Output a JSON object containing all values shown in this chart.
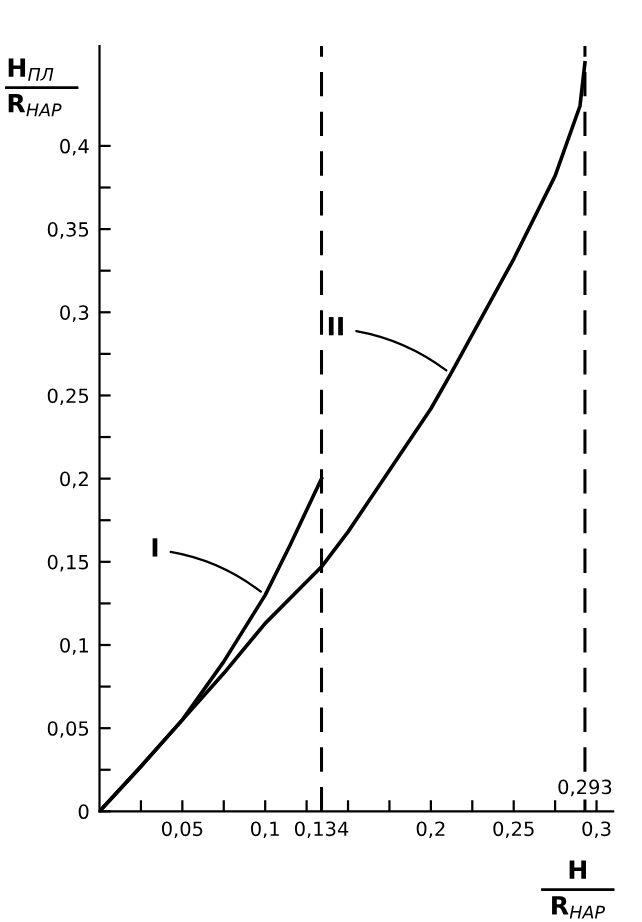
{
  "chart_data": {
    "type": "line",
    "xlabel": "H\nR$_{НАР}$",
    "ylabel": "H$_{ПЛ}$\nR$_{НАР}$",
    "series": [
      {
        "color": "#000000",
        "x": [
          0,
          0.025,
          0.05,
          0.075,
          0.1,
          0.115,
          0.134
        ],
        "values": [
          0,
          0.027,
          0.055,
          0.09,
          0.13,
          0.16,
          0.2
        ]
      },
      {
        "color": "#000000",
        "x": [
          0,
          0.025,
          0.05,
          0.075,
          0.1,
          0.134,
          0.15,
          0.2,
          0.212,
          0.25,
          0.275,
          0.29,
          0.293
        ],
        "values": [
          0,
          0.027,
          0.055,
          0.083,
          0.113,
          0.147,
          0.168,
          0.242,
          0.263,
          0.332,
          0.382,
          0.424,
          0.45
        ]
      }
    ],
    "xlim": [
      0,
      0.31
    ],
    "ylim": [
      0,
      0.46
    ],
    "xticks": [
      {
        "value": 0.025,
        "label": null
      },
      {
        "value": 0.05,
        "label": "0,05"
      },
      {
        "value": 0.075,
        "label": null
      },
      {
        "value": 0.1,
        "label": "0,1"
      },
      {
        "value": 0.125,
        "label": null
      },
      {
        "value": 0.134,
        "label": "0,134"
      },
      {
        "value": 0.15,
        "label": null
      },
      {
        "value": 0.175,
        "label": null
      },
      {
        "value": 0.2,
        "label": "0,2"
      },
      {
        "value": 0.225,
        "label": null
      },
      {
        "value": 0.25,
        "label": "0,25"
      },
      {
        "value": 0.275,
        "label": null
      },
      {
        "value": 0.3,
        "label": "0,3"
      }
    ],
    "yticks": [
      {
        "value": 0,
        "label": "0"
      },
      {
        "value": 0.025,
        "label": null
      },
      {
        "value": 0.05,
        "label": "0,05"
      },
      {
        "value": 0.075,
        "label": null
      },
      {
        "value": 0.1,
        "label": "0,1"
      },
      {
        "value": 0.125,
        "label": null
      },
      {
        "value": 0.15,
        "label": "0,15"
      },
      {
        "value": 0.175,
        "label": null
      },
      {
        "value": 0.2,
        "label": "0,2"
      },
      {
        "value": 0.225,
        "label": null
      },
      {
        "value": 0.25,
        "label": "0,25"
      },
      {
        "value": 0.275,
        "label": null
      },
      {
        "value": 0.3,
        "label": "0,3"
      },
      {
        "value": 0.325,
        "label": null
      },
      {
        "value": 0.35,
        "label": "0,35"
      },
      {
        "value": 0.375,
        "label": null
      },
      {
        "value": 0.4,
        "label": "0,4"
      }
    ],
    "ref_lines": [
      {
        "axis": "x",
        "value": 0.134,
        "label": null,
        "line_style": "dashed"
      },
      {
        "axis": "x",
        "value": 0.293,
        "label": "0,293",
        "line_style": "dashed"
      }
    ],
    "annotations": [
      {
        "text": "I",
        "x": 0.1,
        "y": 0.13
      },
      {
        "text": "II",
        "x": 0.212,
        "y": 0.263
      }
    ],
    "grid": false,
    "legend": false,
    "marker": "none",
    "line_style": "solid"
  }
}
